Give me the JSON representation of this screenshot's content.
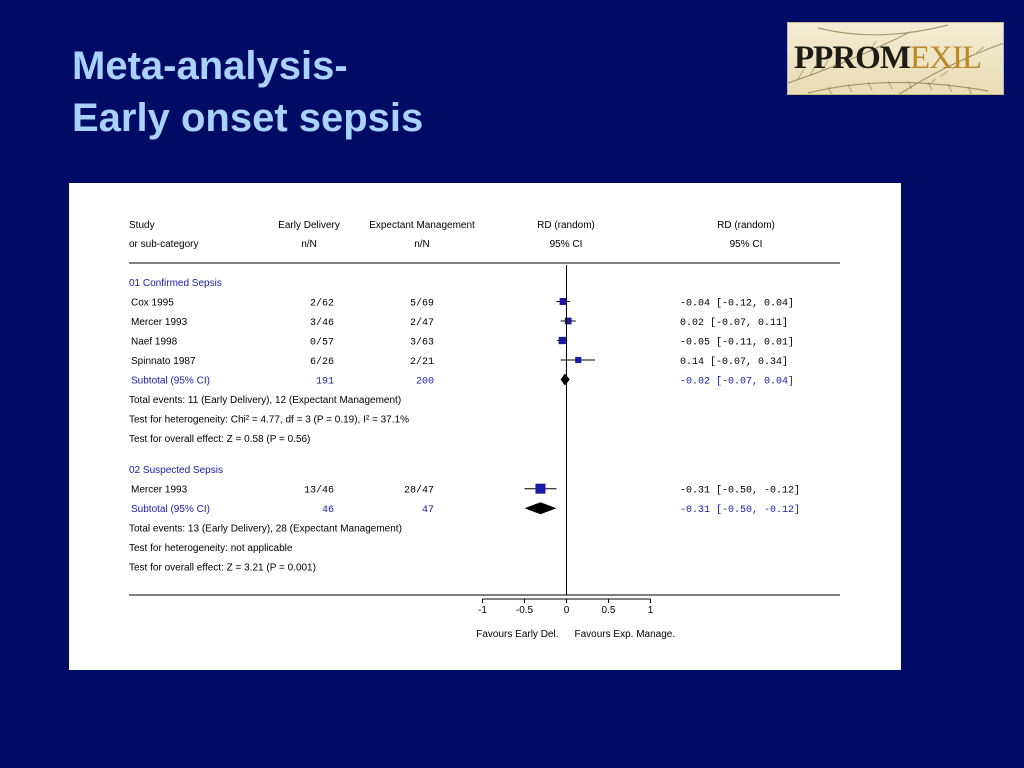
{
  "slide": {
    "title_line1": "Meta-analysis-",
    "title_line2": "Early onset sepsis",
    "logo_part1": "PPROM",
    "logo_part2": "EXIL",
    "background": "#000b66",
    "title_color": "#a9d2ff"
  },
  "chart_data": {
    "type": "forest",
    "headers": {
      "study_1": "Study",
      "study_2": "or sub-category",
      "early_1": "Early Delivery",
      "early_2": "n/N",
      "exp_1": "Expectant Management",
      "exp_2": "n/N",
      "rdplot_1": "RD (random)",
      "rdplot_2": "95% CI",
      "rdtext_1": "RD (random)",
      "rdtext_2": "95% CI"
    },
    "groups": [
      {
        "label": "01 Confirmed Sepsis",
        "studies": [
          {
            "name": "Cox 1995",
            "early": "2/62",
            "exp": "5/69",
            "ci_text": "-0.04 [-0.12, 0.04]",
            "rd": -0.04,
            "lo": -0.12,
            "hi": 0.04,
            "weight": 1.0
          },
          {
            "name": "Mercer 1993",
            "early": "3/46",
            "exp": "2/47",
            "ci_text": "0.02 [-0.07, 0.11]",
            "rd": 0.02,
            "lo": -0.07,
            "hi": 0.11,
            "weight": 0.9
          },
          {
            "name": "Naef 1998",
            "early": "0/57",
            "exp": "3/63",
            "ci_text": "-0.05 [-0.11, 0.01]",
            "rd": -0.05,
            "lo": -0.11,
            "hi": 0.01,
            "weight": 1.1
          },
          {
            "name": "Spinnato 1987",
            "early": "6/26",
            "exp": "2/21",
            "ci_text": "0.14 [-0.07, 0.34]",
            "rd": 0.14,
            "lo": -0.07,
            "hi": 0.34,
            "weight": 0.7
          }
        ],
        "subtotal": {
          "label": "Subtotal (95% CI)",
          "early": "191",
          "exp": "200",
          "ci_text": "-0.02 [-0.07, 0.04]",
          "rd": -0.02,
          "lo": -0.07,
          "hi": 0.04
        },
        "notes": [
          "Total events: 11 (Early Delivery), 12 (Expectant Management)",
          "Test for heterogeneity: Chi² = 4.77, df = 3 (P = 0.19), I² = 37.1%",
          "Test for overall effect: Z = 0.58 (P = 0.56)"
        ]
      },
      {
        "label": "02 Suspected Sepsis",
        "studies": [
          {
            "name": "Mercer 1993",
            "early": "13/46",
            "exp": "28/47",
            "ci_text": "-0.31 [-0.50, -0.12]",
            "rd": -0.31,
            "lo": -0.5,
            "hi": -0.12,
            "weight": 2.0
          }
        ],
        "subtotal": {
          "label": "Subtotal (95% CI)",
          "early": "46",
          "exp": "47",
          "ci_text": "-0.31 [-0.50, -0.12]",
          "rd": -0.31,
          "lo": -0.5,
          "hi": -0.12
        },
        "notes": [
          "Total events: 13 (Early Delivery), 28 (Expectant Management)",
          "Test for heterogeneity: not applicable",
          "Test for overall effect: Z = 3.21 (P = 0.001)"
        ]
      }
    ],
    "x_axis": {
      "ticks": [
        -1,
        -0.5,
        0,
        0.5,
        1
      ],
      "tick_labels": [
        "-1",
        "-0.5",
        "0",
        "0.5",
        "1"
      ],
      "xlim": [
        -1,
        1
      ],
      "label_left": "Favours Early Del.",
      "label_right": "Favours Exp. Manage."
    },
    "colors": {
      "text": "#000000",
      "subtotal": "#1a1aa6",
      "box": "#1a1aa6",
      "diamond": "#000000"
    }
  }
}
